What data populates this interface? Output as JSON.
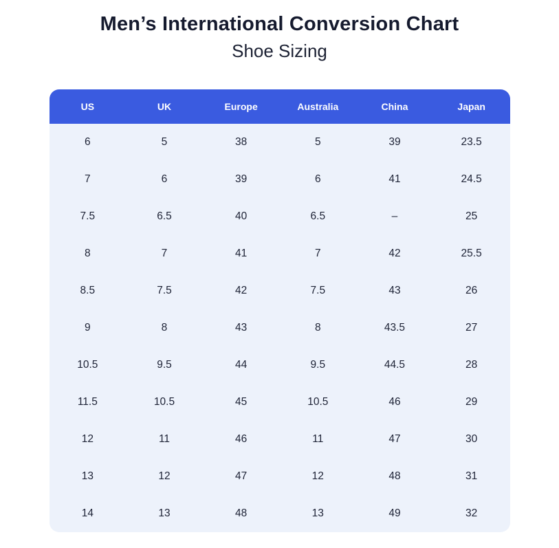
{
  "title": "Men’s International Conversion Chart",
  "subtitle": "Shoe Sizing",
  "colors": {
    "header_bg": "#3a5be0",
    "header_text": "#ffffff",
    "body_bg": "#edf2fb",
    "title_text": "#151a2e",
    "cell_text": "#1d2235"
  },
  "chart_data": {
    "type": "table",
    "title": "Men’s International Conversion Chart",
    "subtitle": "Shoe Sizing",
    "columns": [
      "US",
      "UK",
      "Europe",
      "Australia",
      "China",
      "Japan"
    ],
    "rows": [
      [
        "6",
        "5",
        "38",
        "5",
        "39",
        "23.5"
      ],
      [
        "7",
        "6",
        "39",
        "6",
        "41",
        "24.5"
      ],
      [
        "7.5",
        "6.5",
        "40",
        "6.5",
        "–",
        "25"
      ],
      [
        "8",
        "7",
        "41",
        "7",
        "42",
        "25.5"
      ],
      [
        "8.5",
        "7.5",
        "42",
        "7.5",
        "43",
        "26"
      ],
      [
        "9",
        "8",
        "43",
        "8",
        "43.5",
        "27"
      ],
      [
        "10.5",
        "9.5",
        "44",
        "9.5",
        "44.5",
        "28"
      ],
      [
        "11.5",
        "10.5",
        "45",
        "10.5",
        "46",
        "29"
      ],
      [
        "12",
        "11",
        "46",
        "11",
        "47",
        "30"
      ],
      [
        "13",
        "12",
        "47",
        "12",
        "48",
        "31"
      ],
      [
        "14",
        "13",
        "48",
        "13",
        "49",
        "32"
      ]
    ],
    "layout": {
      "legend": "none",
      "grid": "off",
      "header_position": "top"
    }
  }
}
